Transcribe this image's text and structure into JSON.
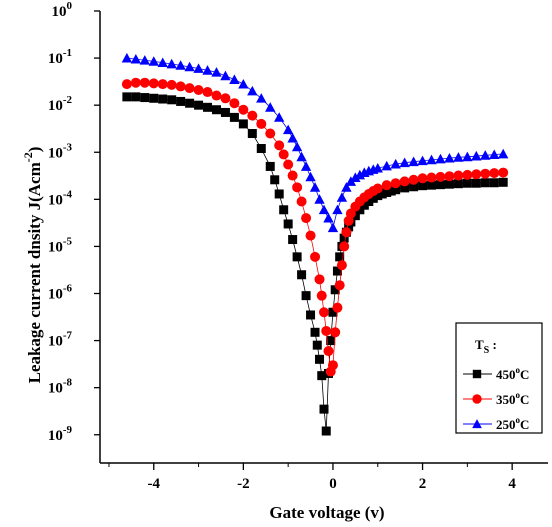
{
  "chart_data": {
    "type": "scatter",
    "title": "",
    "xlabel": "Gate voltage (v)",
    "ylabel": "Leakage current dnsity J(Acm",
    "ylabel_sup": "-2",
    "ylabel_close": ")",
    "xlim": [
      -5.2,
      4.8
    ],
    "ylim_log10": [
      -9.6,
      0
    ],
    "yscale": "log",
    "x_ticks": [
      -4,
      -2,
      0,
      2,
      4
    ],
    "x_tick_labels": [
      "-4",
      "-2",
      "0",
      "2",
      "4"
    ],
    "y_ticks_log10": [
      0,
      -1,
      -2,
      -3,
      -4,
      -5,
      -6,
      -7,
      -8,
      -9
    ],
    "y_tick_base": "10",
    "y_tick_exps": [
      "0",
      "-1",
      "-2",
      "-3",
      "-4",
      "-5",
      "-6",
      "-7",
      "-8",
      "-9"
    ],
    "grid": false,
    "legend": {
      "placement": "bottom-right",
      "title_main": "T",
      "title_sub": "S",
      "title_suffix": " :",
      "entries": [
        {
          "value": "450",
          "sup": "o",
          "unit": "C"
        },
        {
          "value": "350",
          "sup": "o",
          "unit": "C"
        },
        {
          "value": "250",
          "sup": "o",
          "unit": "C"
        }
      ]
    },
    "series": [
      {
        "marker": "square",
        "color": "#000000",
        "x": [
          -4.6,
          -4.4,
          -4.2,
          -4.0,
          -3.8,
          -3.6,
          -3.4,
          -3.2,
          -3.0,
          -2.8,
          -2.6,
          -2.4,
          -2.2,
          -2.0,
          -1.8,
          -1.6,
          -1.4,
          -1.3,
          -1.2,
          -1.1,
          -1.0,
          -0.9,
          -0.8,
          -0.7,
          -0.6,
          -0.5,
          -0.4,
          -0.35,
          -0.3,
          -0.25,
          -0.2,
          -0.15,
          -0.1,
          -0.05,
          0.0,
          0.05,
          0.1,
          0.15,
          0.2,
          0.25,
          0.3,
          0.35,
          0.4,
          0.5,
          0.6,
          0.7,
          0.8,
          0.9,
          1.0,
          1.1,
          1.2,
          1.3,
          1.4,
          1.6,
          1.8,
          2.0,
          2.2,
          2.4,
          2.6,
          2.8,
          3.0,
          3.2,
          3.4,
          3.6,
          3.8
        ],
        "y": [
          0.015,
          0.015,
          0.0145,
          0.014,
          0.0135,
          0.013,
          0.012,
          0.011,
          0.01,
          0.009,
          0.008,
          0.007,
          0.0055,
          0.004,
          0.0025,
          0.0012,
          0.0005,
          0.00026,
          0.00013,
          6e-05,
          3e-05,
          1.4e-05,
          6e-06,
          2.5e-06,
          9e-07,
          3.5e-07,
          1.5e-07,
          8e-08,
          4e-08,
          1.8e-08,
          3.5e-09,
          1.2e-09,
          2e-08,
          1e-07,
          4e-07,
          1.2e-06,
          3e-06,
          6e-06,
          1e-05,
          1.5e-05,
          2e-05,
          2.6e-05,
          3.3e-05,
          4.5e-05,
          6e-05,
          7.5e-05,
          9e-05,
          0.000105,
          0.00012,
          0.00013,
          0.00014,
          0.00015,
          0.00016,
          0.000175,
          0.000185,
          0.000195,
          0.0002,
          0.000205,
          0.00021,
          0.000215,
          0.00022,
          0.00022,
          0.000225,
          0.000225,
          0.00023
        ]
      },
      {
        "marker": "circle",
        "color": "#ff0000",
        "x": [
          -4.6,
          -4.4,
          -4.2,
          -4.0,
          -3.8,
          -3.6,
          -3.4,
          -3.2,
          -3.0,
          -2.8,
          -2.6,
          -2.4,
          -2.2,
          -2.0,
          -1.8,
          -1.6,
          -1.4,
          -1.2,
          -1.1,
          -1.0,
          -0.9,
          -0.8,
          -0.7,
          -0.6,
          -0.5,
          -0.4,
          -0.3,
          -0.25,
          -0.2,
          -0.15,
          -0.1,
          -0.05,
          0.0,
          0.05,
          0.1,
          0.15,
          0.2,
          0.25,
          0.3,
          0.35,
          0.4,
          0.5,
          0.6,
          0.7,
          0.8,
          0.9,
          1.0,
          1.2,
          1.4,
          1.6,
          1.8,
          2.0,
          2.2,
          2.4,
          2.6,
          2.8,
          3.0,
          3.2,
          3.4,
          3.6,
          3.8
        ],
        "y": [
          0.028,
          0.03,
          0.03,
          0.029,
          0.028,
          0.027,
          0.025,
          0.023,
          0.021,
          0.019,
          0.016,
          0.014,
          0.011,
          0.008,
          0.006,
          0.004,
          0.0025,
          0.0014,
          0.0009,
          0.00055,
          0.00032,
          0.00018,
          9e-05,
          4e-05,
          1.7e-05,
          6e-06,
          2e-06,
          9e-07,
          4e-07,
          1.6e-07,
          6e-08,
          2.2e-08,
          3e-08,
          1.5e-07,
          5e-07,
          1.5e-06,
          4e-06,
          1e-05,
          2e-05,
          3.5e-05,
          5e-05,
          7e-05,
          9e-05,
          0.00011,
          0.00013,
          0.00015,
          0.00017,
          0.0002,
          0.00022,
          0.00024,
          0.00026,
          0.00028,
          0.00029,
          0.0003,
          0.00031,
          0.00032,
          0.00033,
          0.00034,
          0.00035,
          0.00036,
          0.00037
        ]
      },
      {
        "marker": "triangle",
        "color": "#0000ff",
        "x": [
          -4.6,
          -4.4,
          -4.2,
          -4.0,
          -3.8,
          -3.6,
          -3.4,
          -3.2,
          -3.0,
          -2.8,
          -2.6,
          -2.4,
          -2.2,
          -2.0,
          -1.8,
          -1.6,
          -1.4,
          -1.2,
          -1.0,
          -0.9,
          -0.8,
          -0.7,
          -0.6,
          -0.5,
          -0.4,
          -0.3,
          -0.2,
          -0.1,
          0.0,
          0.1,
          0.2,
          0.3,
          0.4,
          0.5,
          0.6,
          0.7,
          0.8,
          0.9,
          1.0,
          1.2,
          1.4,
          1.6,
          1.8,
          2.0,
          2.2,
          2.4,
          2.6,
          2.8,
          3.0,
          3.2,
          3.4,
          3.6,
          3.8
        ],
        "y": [
          0.1,
          0.095,
          0.09,
          0.085,
          0.08,
          0.075,
          0.07,
          0.065,
          0.06,
          0.055,
          0.05,
          0.042,
          0.035,
          0.028,
          0.02,
          0.014,
          0.009,
          0.0055,
          0.003,
          0.002,
          0.0013,
          0.0008,
          0.0005,
          0.0003,
          0.00018,
          0.0001,
          6e-05,
          4e-05,
          2.5e-05,
          6e-05,
          0.00011,
          0.00018,
          0.00024,
          0.00029,
          0.00033,
          0.00037,
          0.0004,
          0.00043,
          0.00046,
          0.00051,
          0.00056,
          0.0006,
          0.00063,
          0.00066,
          0.00069,
          0.00072,
          0.00075,
          0.00078,
          0.0008,
          0.00083,
          0.00086,
          0.00089,
          0.00092
        ]
      }
    ]
  }
}
